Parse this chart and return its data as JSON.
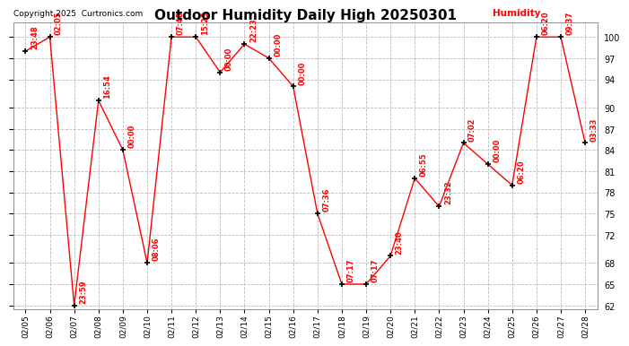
{
  "title": "Outdoor Humidity Daily High 20250301",
  "copyright_text": "Copyright 2025  Curtronics.com",
  "legend_text": "Humidity",
  "background_color": "#ffffff",
  "plot_bg_color": "#ffffff",
  "grid_color": "#bbbbbb",
  "line_color": "#ff0000",
  "marker_color": "#000000",
  "label_color": "#ff0000",
  "dates": [
    "02/05",
    "02/06",
    "02/07",
    "02/08",
    "02/09",
    "02/10",
    "02/11",
    "02/12",
    "02/13",
    "02/14",
    "02/15",
    "02/16",
    "02/17",
    "02/18",
    "02/19",
    "02/20",
    "02/21",
    "02/22",
    "02/23",
    "02/24",
    "02/25",
    "02/26",
    "02/27",
    "02/28"
  ],
  "values": [
    98,
    100,
    62,
    91,
    84,
    68,
    100,
    100,
    95,
    99,
    97,
    93,
    75,
    65,
    65,
    69,
    80,
    76,
    85,
    82,
    79,
    100,
    100,
    85
  ],
  "time_labels": [
    "23:48",
    "02:05",
    "23:59",
    "16:54",
    "00:00",
    "08:06",
    "07:48",
    "15:23",
    "00:00",
    "22:23",
    "00:00",
    "00:00",
    "07:36",
    "07:17",
    "07:17",
    "23:40",
    "06:55",
    "23:32",
    "07:02",
    "00:00",
    "06:20",
    "06:20",
    "09:37",
    "03:33"
  ],
  "ylim_min": 61.5,
  "ylim_max": 102,
  "yticks": [
    62,
    65,
    68,
    72,
    75,
    78,
    81,
    84,
    87,
    90,
    94,
    97,
    100
  ],
  "label_fontsize": 6.0,
  "title_fontsize": 11,
  "copyright_fontsize": 6.5,
  "legend_fontsize": 7.5,
  "tick_labelsize": 7,
  "xtick_labelsize": 6.5
}
